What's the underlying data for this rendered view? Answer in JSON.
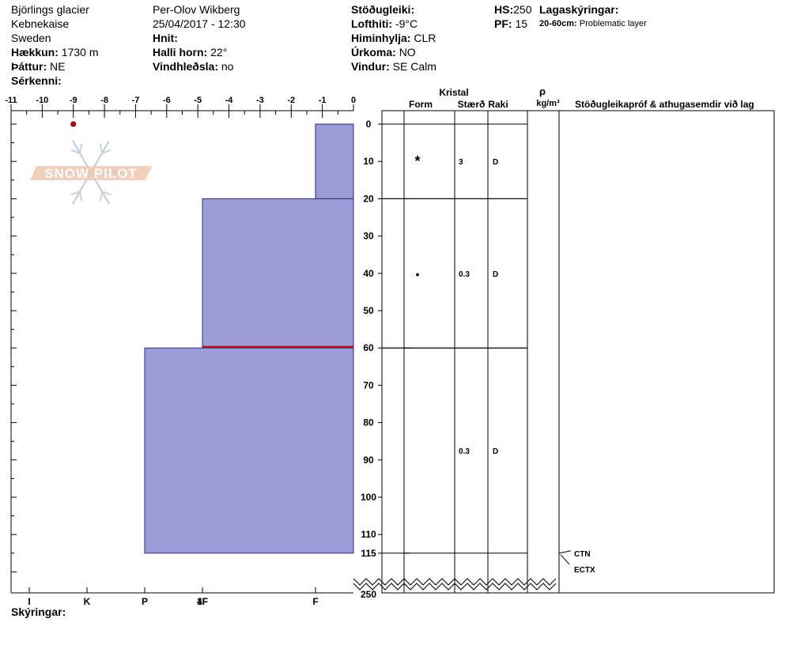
{
  "header": {
    "col1": {
      "site": "Björlings glacier",
      "area": "Kebnekaise",
      "country": "Sweden",
      "elevation_label": "Hækkun:",
      "elevation_value": "1730 m",
      "aspect_label": "Þáttur:",
      "aspect_value": "NE",
      "features_label": "Sérkenni:"
    },
    "col2": {
      "observer": "Per-Olov Wikberg",
      "datetime": "25/04/2017 - 12:30",
      "coords_label": "Hnit:",
      "slope_label": "Halli horn:",
      "slope_value": "22°",
      "wind_loading_label": "Vindhleðsla:",
      "wind_loading_value": "no"
    },
    "col3": {
      "stability_label": "Stöðugleiki:",
      "airtemp_label": "Lofthiti:",
      "airtemp_value": "-9°C",
      "sky_label": "Himinhylja:",
      "sky_value": "CLR",
      "precip_label": "Úrkoma:",
      "precip_value": "NO",
      "wind_label": "Vindur:",
      "wind_value": "SE Calm"
    },
    "col4": {
      "hs_label": "HS:",
      "hs_value": "250",
      "pf_label": "PF:",
      "pf_value": "15"
    },
    "col5": {
      "layer_notes_label": "Lagaskýringar:",
      "layer_notes_range": "20-60cm:",
      "layer_notes_text": "Problematic layer"
    }
  },
  "table_headers": {
    "crystal": "Kristal",
    "form": "Form",
    "size": "Stærð",
    "moisture": "Raki",
    "density_symbol": "ρ",
    "density_unit": "kg/m³",
    "tests": "Stöðugleikapróf & athugasemdir við lag"
  },
  "footer": {
    "legend_label": "Skýringar:"
  },
  "watermark": {
    "text": "SNOW PILOT"
  },
  "colors": {
    "layer_fill": "#9b9bd6",
    "layer_stroke": "#2a2a8a",
    "problem_line": "#cc0000"
  },
  "chart_data": {
    "type": "bar",
    "orientation": "horizontal",
    "temp_axis": {
      "min": -11,
      "max": 0,
      "ticks": [
        "-11",
        "-10",
        "-9",
        "-8",
        "-7",
        "-6",
        "-5",
        "-4",
        "-3",
        "-2",
        "-1",
        "0"
      ]
    },
    "depth_axis": {
      "ticks": [
        "0",
        "10",
        "20",
        "30",
        "40",
        "50",
        "60",
        "70",
        "80",
        "90",
        "100",
        "110",
        "115",
        "250"
      ],
      "values": [
        0,
        10,
        20,
        30,
        40,
        50,
        60,
        70,
        80,
        90,
        100,
        110,
        115
      ]
    },
    "hardness_axis": {
      "labels": [
        "I",
        "K",
        "P",
        "1F",
        "4F",
        "F"
      ]
    },
    "temperature_points": [
      {
        "temp": -9,
        "depth": 0
      }
    ],
    "layers": [
      {
        "top": 0,
        "bottom": 20,
        "hardness": "F",
        "form": "*",
        "size": "3",
        "moisture": "D"
      },
      {
        "top": 20,
        "bottom": 60,
        "hardness": "4F",
        "form": "•",
        "size": "0.3",
        "moisture": "D"
      },
      {
        "top": 60,
        "bottom": 115,
        "hardness": "P",
        "form": "",
        "size": "0.3",
        "moisture": "D"
      }
    ],
    "problem_layer_depth": 60,
    "stability_tests": [
      {
        "label": "CTN",
        "depth": 115
      },
      {
        "label": "ECTX",
        "depth": 115
      }
    ]
  }
}
